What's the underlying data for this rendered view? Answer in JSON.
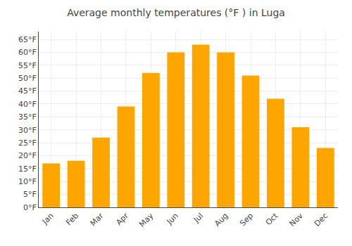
{
  "chart_data": {
    "type": "bar",
    "title": "Average monthly temperatures (°F ) in Luga",
    "categories": [
      "Jan",
      "Feb",
      "Mar",
      "Apr",
      "May",
      "Jun",
      "Jul",
      "Aug",
      "Sep",
      "Oct",
      "Nov",
      "Dec"
    ],
    "values": [
      17,
      18,
      27,
      39,
      52,
      60,
      63,
      60,
      51,
      42,
      31,
      23
    ],
    "color": "#FFA500",
    "ylim": [
      0,
      68
    ],
    "yticks": [
      {
        "value": 0,
        "label": "0°F"
      },
      {
        "value": 5,
        "label": "5°F"
      },
      {
        "value": 10,
        "label": "10°F"
      },
      {
        "value": 15,
        "label": "15°F"
      },
      {
        "value": 20,
        "label": "20°F"
      },
      {
        "value": 25,
        "label": "25°F"
      },
      {
        "value": 30,
        "label": "30°F"
      },
      {
        "value": 35,
        "label": "35°F"
      },
      {
        "value": 40,
        "label": "40°F"
      },
      {
        "value": 45,
        "label": "45°F"
      },
      {
        "value": 50,
        "label": "50°F"
      },
      {
        "value": 55,
        "label": "55°F"
      },
      {
        "value": 60,
        "label": "60°F"
      },
      {
        "value": 65,
        "label": "65°F"
      }
    ],
    "grid": true
  }
}
